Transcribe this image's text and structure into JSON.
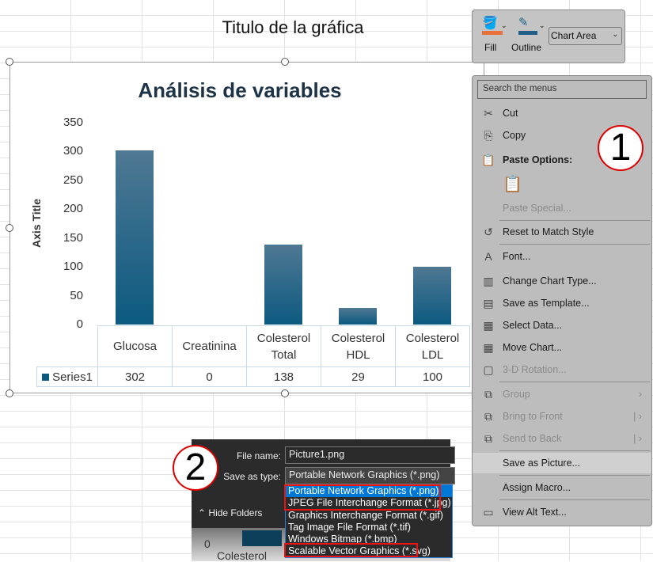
{
  "sheet_title": "Titulo de la gráfica",
  "chart": {
    "title": "Análisis de variables",
    "axis_title": "Axis Title",
    "chart_data": {
      "type": "bar",
      "title": "Análisis de variables",
      "ylabel": "Axis Title",
      "xlabel": "",
      "ylim": [
        0,
        350
      ],
      "yticks": [
        "0",
        "50",
        "100",
        "150",
        "200",
        "250",
        "300",
        "350"
      ],
      "categories": [
        "Glucosa",
        "Creatinina",
        "Colesterol Total",
        "Colesterol HDL",
        "Colesterol LDL"
      ],
      "category_lines": [
        [
          "Glucosa"
        ],
        [
          "Creatinina"
        ],
        [
          "Colesterol",
          "Total"
        ],
        [
          "Colesterol",
          "HDL"
        ],
        [
          "Colesterol",
          "LDL"
        ]
      ],
      "series": [
        {
          "name": "Series1",
          "values": [
            302,
            0,
            138,
            29,
            100
          ]
        }
      ],
      "value_labels": [
        "302",
        "0",
        "138",
        "29",
        "100"
      ],
      "color": "#0c5a80",
      "grid": false,
      "legend": "data-table"
    }
  },
  "mini_toolbar": {
    "fill": "Fill",
    "outline": "Outline",
    "element_select": "Chart Area",
    "fill_color": "#e8703a",
    "outline_color": "#1f5f87"
  },
  "menu": {
    "search_placeholder": "Search the menus",
    "items": [
      {
        "label": "Cut",
        "icon": "scissors-icon"
      },
      {
        "label": "Copy",
        "icon": "copy-icon"
      },
      {
        "label": "Paste Options:",
        "icon": "paste-icon"
      },
      {
        "label": "Paste Special...",
        "icon": ""
      },
      {
        "label": "Reset to Match Style",
        "icon": "reset-icon"
      },
      {
        "label": "Font...",
        "icon": "font-icon"
      },
      {
        "label": "Change Chart Type...",
        "icon": "chart-type-icon"
      },
      {
        "label": "Save as Template...",
        "icon": "template-icon"
      },
      {
        "label": "Select Data...",
        "icon": "select-data-icon"
      },
      {
        "label": "Move Chart...",
        "icon": "move-chart-icon"
      },
      {
        "label": "3-D Rotation...",
        "icon": "rotation-icon"
      },
      {
        "label": "Group",
        "icon": "group-icon"
      },
      {
        "label": "Bring to Front",
        "icon": "bring-front-icon"
      },
      {
        "label": "Send to Back",
        "icon": "send-back-icon"
      },
      {
        "label": "Save as Picture...",
        "icon": ""
      },
      {
        "label": "Assign Macro...",
        "icon": ""
      },
      {
        "label": "View Alt Text...",
        "icon": "alt-text-icon"
      }
    ]
  },
  "badges": {
    "one": "1",
    "two": "2"
  },
  "dialog": {
    "file_name_label": "File name:",
    "file_name": "Picture1.png",
    "type_label": "Save as type:",
    "type_value": "Portable Network Graphics (*.png)",
    "hide_folders": "Hide Folders",
    "types": [
      "Portable Network Graphics (*.png)",
      "JPEG File Interchange Format (*.jpg)",
      "Graphics Interchange Format (*.gif)",
      "Tag Image File Format (*.tif)",
      "Windows Bitmap (*.bmp)",
      "Scalable Vector Graphics (*.svg)"
    ],
    "bg_zero": "0",
    "bg_category": "Colesterol"
  }
}
